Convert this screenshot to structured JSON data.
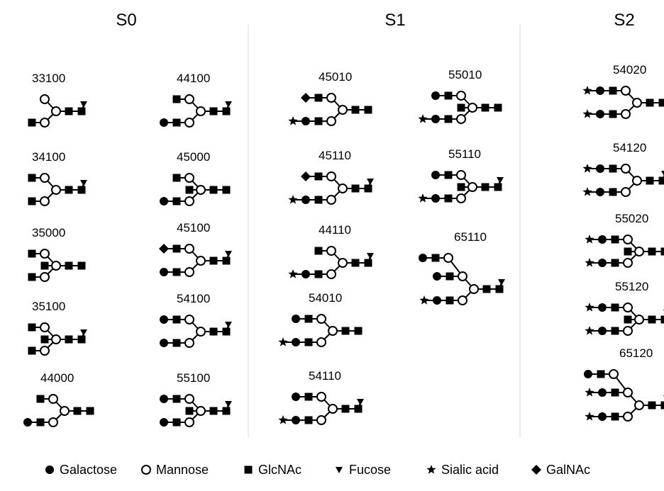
{
  "columns": [
    {
      "title": "S0",
      "glycans": [
        {
          "label": "33100",
          "branches": [
            {
              "residues": []
            },
            {
              "residues": [
                "GlcNAc"
              ]
            }
          ],
          "core_fucose": true,
          "bisecting": false
        },
        {
          "label": "44100",
          "branches": [
            {
              "residues": [
                "GlcNAc"
              ]
            },
            {
              "residues": [
                "Galactose",
                "GlcNAc"
              ]
            }
          ],
          "core_fucose": true,
          "bisecting": false
        },
        {
          "label": "34100",
          "branches": [
            {
              "residues": [
                "GlcNAc"
              ]
            },
            {
              "residues": [
                "GlcNAc"
              ]
            }
          ],
          "core_fucose": true,
          "bisecting": false
        },
        {
          "label": "45000",
          "branches": [
            {
              "residues": [
                "GlcNAc"
              ]
            },
            {
              "residues": [
                "Galactose",
                "GlcNAc"
              ]
            }
          ],
          "core_fucose": false,
          "bisecting": true
        },
        {
          "label": "35000",
          "branches": [
            {
              "residues": [
                "GlcNAc"
              ]
            },
            {
              "residues": [
                "GlcNAc"
              ]
            }
          ],
          "core_fucose": false,
          "bisecting": true
        },
        {
          "label": "45100",
          "branches": [
            {
              "residues": [
                "GalNAc",
                "GlcNAc"
              ]
            },
            {
              "residues": [
                "Galactose",
                "GlcNAc"
              ]
            }
          ],
          "core_fucose": true,
          "bisecting": false
        },
        {
          "label": "35100",
          "branches": [
            {
              "residues": [
                "GlcNAc"
              ]
            },
            {
              "residues": [
                "GlcNAc"
              ]
            }
          ],
          "core_fucose": true,
          "bisecting": true
        },
        {
          "label": "54100",
          "branches": [
            {
              "residues": [
                "Galactose",
                "GlcNAc"
              ]
            },
            {
              "residues": [
                "Galactose",
                "GlcNAc"
              ]
            }
          ],
          "core_fucose": true,
          "bisecting": false
        },
        {
          "label": "44000",
          "branches": [
            {
              "residues": [
                "GlcNAc"
              ]
            },
            {
              "residues": [
                "Galactose",
                "GlcNAc"
              ]
            }
          ],
          "core_fucose": false,
          "bisecting": false
        },
        {
          "label": "55100",
          "branches": [
            {
              "residues": [
                "Galactose",
                "GlcNAc"
              ]
            },
            {
              "residues": [
                "Galactose",
                "GlcNAc"
              ]
            }
          ],
          "core_fucose": true,
          "bisecting": true
        }
      ]
    },
    {
      "title": "S1",
      "glycans": [
        {
          "label": "45010",
          "branches": [
            {
              "residues": [
                "GalNAc",
                "GlcNAc"
              ]
            },
            {
              "residues": [
                "Sialic acid",
                "Galactose",
                "GlcNAc"
              ]
            }
          ],
          "core_fucose": false,
          "bisecting": false
        },
        {
          "label": "55010",
          "branches": [
            {
              "residues": [
                "Galactose",
                "GlcNAc"
              ]
            },
            {
              "residues": [
                "Sialic acid",
                "Galactose",
                "GlcNAc"
              ]
            }
          ],
          "core_fucose": false,
          "bisecting": true
        },
        {
          "label": "45110",
          "branches": [
            {
              "residues": [
                "GalNAc",
                "GlcNAc"
              ]
            },
            {
              "residues": [
                "Sialic acid",
                "Galactose",
                "GlcNAc"
              ]
            }
          ],
          "core_fucose": true,
          "bisecting": false
        },
        {
          "label": "55110",
          "branches": [
            {
              "residues": [
                "Galactose",
                "GlcNAc"
              ]
            },
            {
              "residues": [
                "Sialic acid",
                "Galactose",
                "GlcNAc"
              ]
            }
          ],
          "core_fucose": true,
          "bisecting": true
        },
        {
          "label": "44110",
          "branches": [
            {
              "residues": [
                "GlcNAc"
              ]
            },
            {
              "residues": [
                "Sialic acid",
                "Galactose",
                "GlcNAc"
              ]
            }
          ],
          "core_fucose": true,
          "bisecting": false
        },
        {
          "label": "65110",
          "branches": [
            {
              "residues": [
                "Galactose",
                "GlcNAc"
              ]
            },
            {
              "residues": [
                "Galactose",
                "GlcNAc"
              ]
            },
            {
              "residues": [
                "Sialic acid",
                "Galactose",
                "GlcNAc"
              ]
            }
          ],
          "core_fucose": true,
          "bisecting": false
        },
        {
          "label": "54010",
          "branches": [
            {
              "residues": [
                "Galactose",
                "GlcNAc"
              ]
            },
            {
              "residues": [
                "Sialic acid",
                "Galactose",
                "GlcNAc"
              ]
            }
          ],
          "core_fucose": false,
          "bisecting": false
        },
        {
          "label": "54110",
          "branches": [
            {
              "residues": [
                "Galactose",
                "GlcNAc"
              ]
            },
            {
              "residues": [
                "Sialic acid",
                "Galactose",
                "GlcNAc"
              ]
            }
          ],
          "core_fucose": true,
          "bisecting": false
        }
      ]
    },
    {
      "title": "S2",
      "glycans": [
        {
          "label": "54020",
          "branches": [
            {
              "residues": [
                "Sialic acid",
                "Galactose",
                "GlcNAc"
              ]
            },
            {
              "residues": [
                "Sialic acid",
                "Galactose",
                "GlcNAc"
              ]
            }
          ],
          "core_fucose": false,
          "bisecting": false
        },
        {
          "label": "54120",
          "branches": [
            {
              "residues": [
                "Sialic acid",
                "Galactose",
                "GlcNAc"
              ]
            },
            {
              "residues": [
                "Sialic acid",
                "Galactose",
                "GlcNAc"
              ]
            }
          ],
          "core_fucose": true,
          "bisecting": false
        },
        {
          "label": "55020",
          "branches": [
            {
              "residues": [
                "Sialic acid",
                "Galactose",
                "GlcNAc"
              ]
            },
            {
              "residues": [
                "Sialic acid",
                "Galactose",
                "GlcNAc"
              ]
            }
          ],
          "core_fucose": false,
          "bisecting": true
        },
        {
          "label": "55120",
          "branches": [
            {
              "residues": [
                "Sialic acid",
                "Galactose",
                "GlcNAc"
              ]
            },
            {
              "residues": [
                "Sialic acid",
                "Galactose",
                "GlcNAc"
              ]
            }
          ],
          "core_fucose": true,
          "bisecting": true
        },
        {
          "label": "65120",
          "branches": [
            {
              "residues": [
                "Galactose",
                "GlcNAc"
              ]
            },
            {
              "residues": [
                "Sialic acid",
                "Galactose",
                "GlcNAc"
              ]
            },
            {
              "residues": [
                "Sialic acid",
                "Galactose",
                "GlcNAc"
              ]
            }
          ],
          "core_fucose": true,
          "bisecting": false
        }
      ]
    }
  ],
  "legend": [
    {
      "symbol": "Galactose",
      "label": "Galactose"
    },
    {
      "symbol": "Mannose",
      "label": "Mannose"
    },
    {
      "symbol": "GlcNAc",
      "label": "GlcNAc"
    },
    {
      "symbol": "Fucose",
      "label": "Fucose"
    },
    {
      "symbol": "Sialic acid",
      "label": "Sialic acid"
    },
    {
      "symbol": "GalNAc",
      "label": "GalNAc"
    }
  ]
}
